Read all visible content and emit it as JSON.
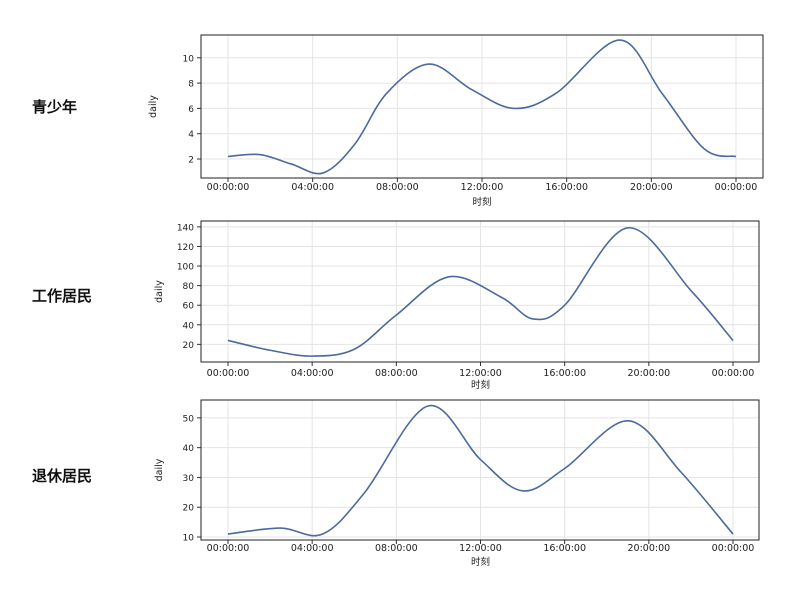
{
  "chart_data": [
    {
      "type": "line",
      "group_label": "青少年",
      "xlabel": "时刻",
      "ylabel": "daily",
      "x_ticks": [
        "00:00:00",
        "04:00:00",
        "08:00:00",
        "12:00:00",
        "16:00:00",
        "20:00:00",
        "00:00:00"
      ],
      "y_ticks": [
        2,
        4,
        6,
        8,
        10
      ],
      "ylim": [
        0.5,
        11.8
      ],
      "xlim": [
        0,
        24
      ],
      "grid": true,
      "color": "#4c6a9c",
      "series": [
        {
          "x": [
            0,
            1.5,
            3,
            4.5,
            6,
            7.5,
            9.5,
            11.5,
            13.5,
            15.5,
            18.5,
            20.5,
            22.5,
            24
          ],
          "values": [
            2.2,
            2.35,
            1.6,
            0.9,
            3.2,
            7.2,
            9.5,
            7.5,
            6.0,
            7.2,
            11.4,
            7.2,
            2.8,
            2.2
          ]
        }
      ]
    },
    {
      "type": "line",
      "group_label": "工作居民",
      "xlabel": "时刻",
      "ylabel": "daily",
      "x_ticks": [
        "00:00:00",
        "04:00:00",
        "08:00:00",
        "12:00:00",
        "16:00:00",
        "20:00:00",
        "00:00:00"
      ],
      "y_ticks": [
        20,
        40,
        60,
        80,
        100,
        120,
        140
      ],
      "ylim": [
        2,
        146
      ],
      "xlim": [
        0,
        24
      ],
      "grid": true,
      "color": "#4c6a9c",
      "series": [
        {
          "x": [
            0,
            2,
            4,
            6,
            8,
            10.5,
            13,
            14.5,
            16,
            19,
            22,
            24
          ],
          "values": [
            24,
            14,
            8,
            15,
            50,
            89,
            68,
            46,
            60,
            139,
            75,
            24
          ]
        }
      ]
    },
    {
      "type": "line",
      "group_label": "退休居民",
      "xlabel": "时刻",
      "ylabel": "daily",
      "x_ticks": [
        "00:00:00",
        "04:00:00",
        "08:00:00",
        "12:00:00",
        "16:00:00",
        "20:00:00",
        "00:00:00"
      ],
      "y_ticks": [
        10,
        20,
        30,
        40,
        50
      ],
      "ylim": [
        9,
        56
      ],
      "xlim": [
        0,
        24
      ],
      "grid": true,
      "color": "#4c6a9c",
      "series": [
        {
          "x": [
            0,
            2.5,
            4.5,
            6.5,
            9.5,
            12,
            14,
            16,
            19,
            21.5,
            24
          ],
          "values": [
            11,
            13,
            11,
            25,
            54,
            36,
            25.5,
            33,
            49,
            32,
            11
          ]
        }
      ]
    }
  ]
}
